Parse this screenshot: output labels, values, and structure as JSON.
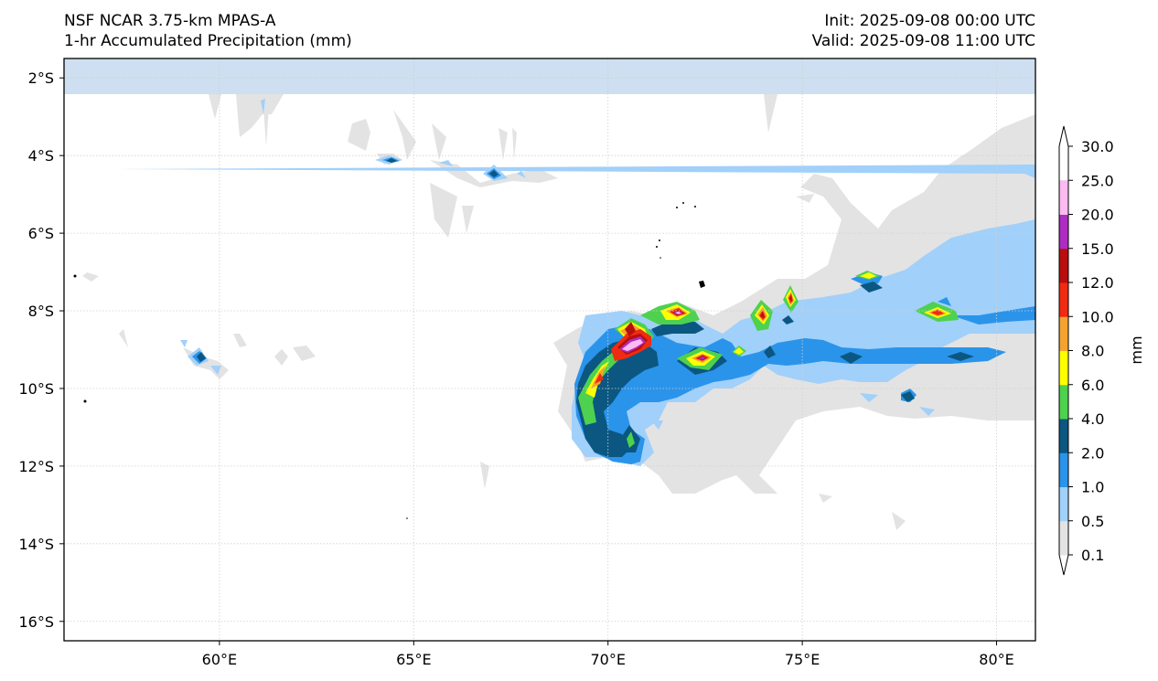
{
  "header": {
    "model": "NSF NCAR 3.75-km MPAS-A",
    "field": "1-hr Accumulated Precipitation (mm)",
    "init": "Init: 2025-09-08 00:00 UTC",
    "valid": "Valid: 2025-09-08 11:00 UTC"
  },
  "map": {
    "projection": "PlateCarree",
    "lon_range": [
      56,
      81
    ],
    "lat_range": [
      -16.5,
      -1.5
    ],
    "x_ticks": [
      {
        "value": 60,
        "label": "60°E"
      },
      {
        "value": 65,
        "label": "65°E"
      },
      {
        "value": 70,
        "label": "70°E"
      },
      {
        "value": 75,
        "label": "75°E"
      },
      {
        "value": 80,
        "label": "80°E"
      }
    ],
    "y_ticks": [
      {
        "value": -2,
        "label": "2°S"
      },
      {
        "value": -4,
        "label": "4°S"
      },
      {
        "value": -6,
        "label": "6°S"
      },
      {
        "value": -8,
        "label": "8°S"
      },
      {
        "value": -10,
        "label": "10°S"
      },
      {
        "value": -12,
        "label": "12°S"
      },
      {
        "value": -14,
        "label": "14°S"
      },
      {
        "value": -16,
        "label": "16°S"
      }
    ],
    "gridlines": true,
    "masked_band_color": "#cddff0"
  },
  "colorbar": {
    "label": "mm",
    "levels": [
      "0.1",
      "0.5",
      "1.0",
      "2.0",
      "4.0",
      "6.0",
      "8.0",
      "10.0",
      "12.0",
      "15.0",
      "20.0",
      "25.0",
      "30.0"
    ],
    "colors": [
      "#e3e3e3",
      "#a1d0fa",
      "#2a94ea",
      "#0b5781",
      "#4ed14e",
      "#fefe03",
      "#f4a331",
      "#ef2b12",
      "#b80e0e",
      "#ad2dc2",
      "#fbbaf0"
    ],
    "extend": "both"
  },
  "precip_colors": {
    "trace": "#e3e3e3",
    "light": "#a1d0fa",
    "mod": "#2a94ea",
    "heavy": "#0b5781",
    "green": "#4ed14e",
    "yellow": "#fefe03",
    "orange": "#f4a331",
    "red": "#ef2b12",
    "darkred": "#b80e0e",
    "purple": "#ad2dc2",
    "pink": "#fbbaf0"
  }
}
